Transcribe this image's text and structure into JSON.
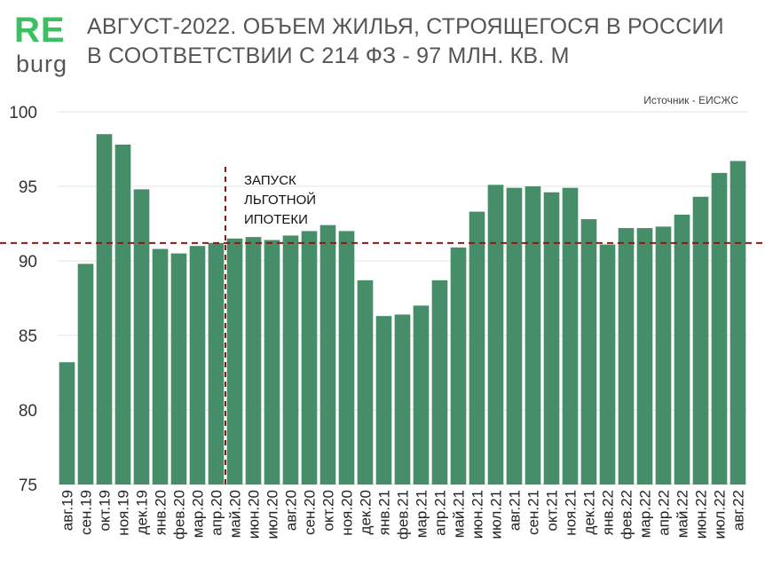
{
  "header": {
    "logo_top": "RE",
    "logo_bottom": "burg",
    "title_line1": "АВГУСТ-2022. ОБЪЕМ ЖИЛЬЯ, СТРОЯЩЕГОСЯ В РОССИИ",
    "title_line2": "В СООТВЕТСТВИИ С 214 ФЗ - 97 МЛН. КВ. М",
    "source": "Источник - ЕИСЖС"
  },
  "colors": {
    "bar": "#468d6a",
    "reference_line": "#8b1a1a",
    "logo_accent": "#3dbf63",
    "text": "#555555"
  },
  "chart_data": {
    "type": "bar",
    "title": "АВГУСТ-2022. ОБЪЕМ ЖИЛЬЯ, СТРОЯЩЕГОСЯ В РОССИИ В СООТВЕТСТВИИ С 214 ФЗ - 97 МЛН. КВ. М",
    "xlabel": "",
    "ylabel": "",
    "ylim": [
      75,
      100
    ],
    "yticks": [
      75,
      80,
      85,
      90,
      95,
      100
    ],
    "grid": true,
    "categories": [
      "авг.19",
      "сен.19",
      "окт.19",
      "ноя.19",
      "дек.19",
      "янв.20",
      "фев.20",
      "мар.20",
      "апр.20",
      "май.20",
      "июн.20",
      "июл.20",
      "авг.20",
      "сен.20",
      "окт.20",
      "ноя.20",
      "дек.20",
      "янв.21",
      "фев.21",
      "мар.21",
      "апр.21",
      "май.21",
      "июн.21",
      "июл.21",
      "авг.21",
      "сен.21",
      "окт.21",
      "ноя.21",
      "дек.21",
      "янв.22",
      "фев.22",
      "мар.22",
      "апр.22",
      "май.22",
      "июн.22",
      "июл.22",
      "авг.22"
    ],
    "values": [
      83.2,
      89.8,
      98.5,
      97.8,
      94.8,
      90.8,
      90.5,
      91.0,
      91.2,
      91.5,
      91.6,
      91.4,
      91.7,
      92.0,
      92.4,
      92.0,
      88.7,
      86.3,
      86.4,
      87.0,
      88.7,
      90.9,
      93.3,
      95.1,
      94.9,
      95.0,
      94.6,
      94.9,
      92.8,
      91.1,
      92.2,
      92.2,
      92.3,
      93.1,
      94.3,
      95.9,
      96.7
    ],
    "annotations": [
      {
        "type": "horizontal_line",
        "y": 91.2,
        "style": "dashed"
      },
      {
        "type": "vertical_line",
        "after_category": "апр.20",
        "style": "dashed",
        "label": [
          "ЗАПУСК",
          "ЛЬГОТНОЙ",
          "ИПОТЕКИ"
        ]
      }
    ]
  }
}
